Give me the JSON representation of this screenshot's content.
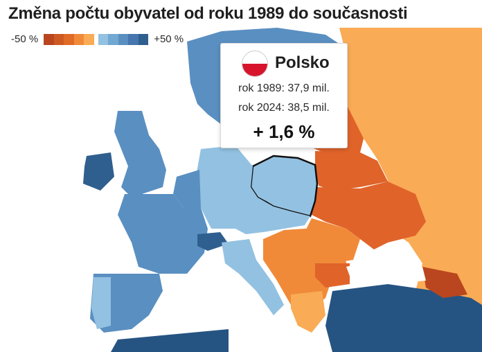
{
  "title": "Změna počtu obyvatel od roku 1989 do současnosti",
  "legend": {
    "min_label": "-50 %",
    "max_label": "+50 %",
    "colors_negative": [
      "#b9461f",
      "#cd5a22",
      "#e06b26",
      "#f08a39",
      "#f9ab55"
    ],
    "colors_positive": [
      "#93c1e1",
      "#72a8d2",
      "#5a8fc1",
      "#4676ad",
      "#2f5f8e"
    ]
  },
  "tooltip": {
    "country": "Polsko",
    "flag_icon": "poland-flag-icon",
    "row1_label": "rok 1989:",
    "row1_value": "37,9 mil.",
    "row2_label": "rok 2024:",
    "row2_value": "38,5 mil.",
    "change": "+ 1,6 %"
  },
  "map": {
    "highlighted_country": "Polsko",
    "colors": {
      "sea": "#ffffff",
      "dark_orange": "#e0632a",
      "mid_orange": "#f08a39",
      "light_orange": "#f9ab55",
      "light_blue": "#93c1e1",
      "mid_blue": "#5a8fc1",
      "dark_blue": "#2f5f8e",
      "darkest_blue": "#265482"
    }
  }
}
